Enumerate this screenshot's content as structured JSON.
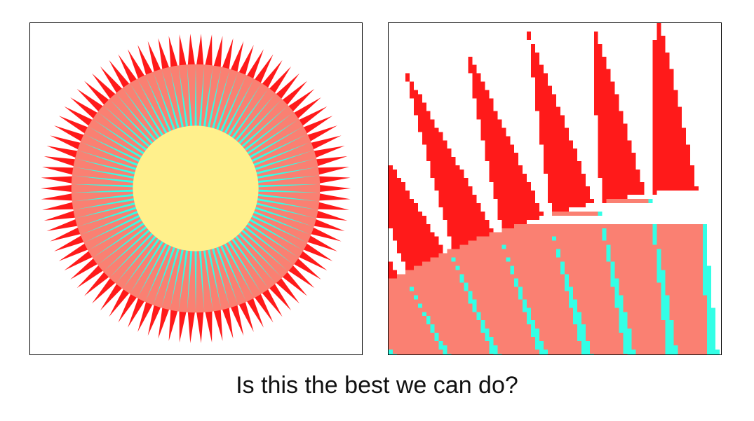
{
  "caption": "Is this the best we can do?",
  "colors": {
    "spikes": "#ff1a1a",
    "ring": "#fa8072",
    "rays": "#33ffe6",
    "center": "#fff08c",
    "background": "#ffffff",
    "frame": "#000000"
  },
  "figure": {
    "spike_count": 90,
    "panels": [
      {
        "role": "full-view",
        "rendering": "smooth"
      },
      {
        "role": "zoomed-detail",
        "rendering": "pixelated"
      }
    ]
  }
}
